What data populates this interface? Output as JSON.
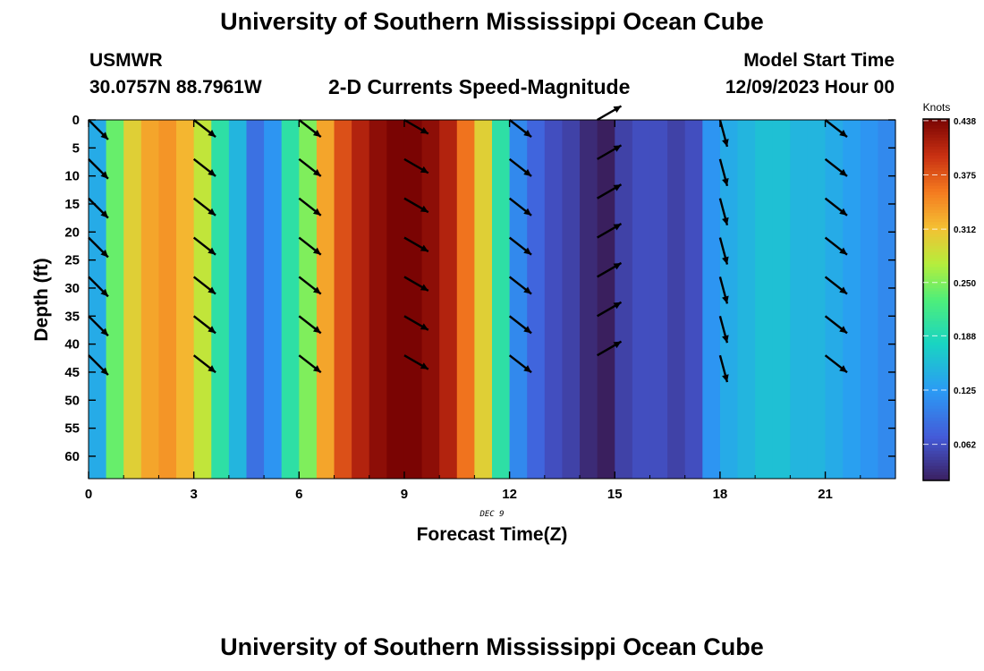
{
  "header": {
    "title": "University of Southern Mississippi Ocean Cube",
    "station": "USMWR",
    "coordinates": "30.0757N  88.7961W",
    "product": "2-D Currents Speed-Magnitude",
    "model_start_label": "Model Start Time",
    "model_start_value": "12/09/2023 Hour 00"
  },
  "footer": {
    "title": "University of Southern Mississippi Ocean Cube"
  },
  "chart_data": {
    "type": "heatmap",
    "title": "2-D Currents Speed-Magnitude",
    "xlabel": "Forecast Time(Z)",
    "ylabel": "Depth (ft)",
    "x_date_label": "DEC 9",
    "xlim": [
      0,
      23
    ],
    "ylim": [
      0,
      64
    ],
    "x_ticks": [
      0,
      3,
      6,
      9,
      12,
      15,
      18,
      21
    ],
    "y_ticks": [
      0,
      5,
      10,
      15,
      20,
      25,
      30,
      35,
      40,
      45,
      50,
      55,
      60
    ],
    "colorbar": {
      "label": "Knots",
      "range": [
        0.02,
        0.44
      ],
      "ticks": [
        "0.062",
        "0.125",
        "0.188",
        "0.250",
        "0.312",
        "0.375",
        "0.438"
      ]
    },
    "speed_knots_by_half_hour": [
      0.14,
      0.24,
      0.3,
      0.33,
      0.34,
      0.32,
      0.28,
      0.2,
      0.15,
      0.09,
      0.12,
      0.2,
      0.25,
      0.33,
      0.38,
      0.41,
      0.43,
      0.44,
      0.44,
      0.43,
      0.41,
      0.36,
      0.3,
      0.2,
      0.11,
      0.08,
      0.06,
      0.05,
      0.03,
      0.02,
      0.05,
      0.06,
      0.06,
      0.05,
      0.06,
      0.12,
      0.14,
      0.15,
      0.16,
      0.16,
      0.15,
      0.15,
      0.14,
      0.13,
      0.12,
      0.11
    ],
    "vectors": {
      "times": [
        0,
        3,
        6,
        9,
        12,
        14.5,
        18,
        21
      ],
      "depths": [
        0,
        7,
        14,
        21,
        28,
        35,
        42
      ],
      "direction_to_deg": [
        135,
        128,
        128,
        120,
        128,
        60,
        165,
        128
      ]
    }
  }
}
